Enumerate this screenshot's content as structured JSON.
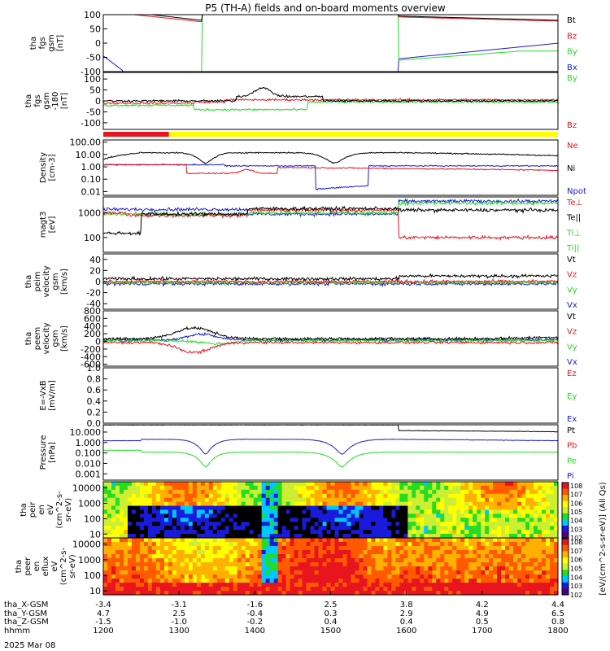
{
  "title": "P5 (TH-A) fields and on-board moments overview",
  "date_label": "2025 Mar 08",
  "colors": {
    "black": "#000000",
    "red": "#e8141e",
    "green": "#22dd22",
    "blue": "#1a1adc",
    "yellow": "#ffff00"
  },
  "chart_data": {
    "type": "line",
    "x_axis": {
      "ticks_hhmm": [
        "1200",
        "1300",
        "1400",
        "1500",
        "1600",
        "1700",
        "1800"
      ],
      "rows": [
        {
          "label": "tha_X-GSM",
          "values": [
            "-3.4",
            "-3.1",
            "-1.6",
            "2.5",
            "3.8",
            "4.2",
            "4.4"
          ]
        },
        {
          "label": "tha_Y-GSM",
          "values": [
            "4.7",
            "2.5",
            "-0.4",
            "0.3",
            "2.9",
            "4.9",
            "6.5"
          ]
        },
        {
          "label": "tha_Z-GSM",
          "values": [
            "-1.5",
            "-1.0",
            "-0.2",
            "0.4",
            "0.4",
            "0.5",
            "0.8"
          ]
        },
        {
          "label": "hhmm",
          "values": []
        }
      ]
    },
    "panels": [
      {
        "id": "fgs",
        "ylabel": [
          "tha",
          "fgs",
          "gsm",
          "[nT]"
        ],
        "scale": "linear",
        "ylim": [
          -100,
          100
        ],
        "ticks": [
          "100",
          "50",
          "0",
          "-50",
          "-100"
        ],
        "series": [
          {
            "name": "Bt",
            "color": "black"
          },
          {
            "name": "Bz",
            "color": "red"
          },
          {
            "name": "By",
            "color": "green"
          },
          {
            "name": "Bx",
            "color": "blue"
          }
        ]
      },
      {
        "id": "fgs_dsl",
        "ylabel": [
          "tha",
          "fgs",
          "gsm",
          "-180",
          "[nT]"
        ],
        "scale": "linear",
        "ylim": [
          -130,
          130
        ],
        "ticks": [
          "100",
          "50",
          "0",
          "-50",
          "-100"
        ],
        "series": [
          {
            "name": "By",
            "color": "green"
          },
          {
            "name": "Bz",
            "color": "red"
          }
        ]
      },
      {
        "id": "density",
        "ylabel": [
          "Density",
          "[cm-3]"
        ],
        "scale": "log",
        "ylim": [
          0.005,
          150
        ],
        "ticks": [
          "100.00",
          "10.00",
          "1.00",
          "0.10",
          "0.01"
        ],
        "series": [
          {
            "name": "Ne",
            "color": "red"
          },
          {
            "name": "Ni",
            "color": "black"
          },
          {
            "name": "Npot",
            "color": "blue"
          }
        ]
      },
      {
        "id": "temp",
        "ylabel": [
          "magt3",
          "[eV]"
        ],
        "scale": "log",
        "ylim": [
          25,
          4500
        ],
        "ticks": [
          "1000",
          "100"
        ],
        "series": [
          {
            "name": "Te⊥",
            "color": "red"
          },
          {
            "name": "Te||",
            "color": "black"
          },
          {
            "name": "Ti⊥",
            "color": "green"
          },
          {
            "name": "Ti||",
            "color": "green"
          }
        ]
      },
      {
        "id": "peim_v",
        "ylabel": [
          "tha",
          "peim",
          "velocity",
          "gsm",
          "[km/s]"
        ],
        "scale": "linear",
        "ylim": [
          -50,
          50
        ],
        "ticks": [
          "40",
          "20",
          "0",
          "-20",
          "-40"
        ],
        "series": [
          {
            "name": "Vt",
            "color": "black"
          },
          {
            "name": "Vz",
            "color": "red"
          },
          {
            "name": "Vy",
            "color": "green"
          },
          {
            "name": "Vx",
            "color": "blue"
          }
        ]
      },
      {
        "id": "peem_v",
        "ylabel": [
          "tha",
          "peem",
          "velocity",
          "gsm",
          "[km/s]"
        ],
        "scale": "linear",
        "ylim": [
          -650,
          800
        ],
        "ticks": [
          "800",
          "600",
          "400",
          "200",
          "0",
          "-200",
          "-400",
          "-600"
        ],
        "series": [
          {
            "name": "Vt",
            "color": "black"
          },
          {
            "name": "Vz",
            "color": "red"
          },
          {
            "name": "Vy",
            "color": "green"
          },
          {
            "name": "Vx",
            "color": "blue"
          }
        ]
      },
      {
        "id": "efield",
        "ylabel": [
          "E=-VxB",
          "[mV/m]"
        ],
        "scale": "linear",
        "ylim": [
          0,
          1
        ],
        "ticks": [
          "1.0",
          "0.8",
          "0.6",
          "0.4",
          "0.2",
          "0.0"
        ],
        "series": [
          {
            "name": "Ez",
            "color": "red"
          },
          {
            "name": "Ey",
            "color": "green"
          },
          {
            "name": "Ex",
            "color": "blue"
          }
        ]
      },
      {
        "id": "pressure",
        "ylabel": [
          "Pressure",
          "[nPa]"
        ],
        "scale": "log",
        "ylim": [
          0.00025,
          50
        ],
        "ticks": [
          "10.000",
          "1.000",
          "0.100",
          "0.010",
          "0.001"
        ],
        "series": [
          {
            "name": "Pt",
            "color": "black"
          },
          {
            "name": "Pb",
            "color": "red"
          },
          {
            "name": "Pe",
            "color": "green"
          },
          {
            "name": "Pi",
            "color": "blue"
          }
        ]
      },
      {
        "id": "peir",
        "ylabel": [
          "tha",
          "peir",
          "en",
          "eV",
          "(cm^2-s-",
          "sr-eV)"
        ],
        "scale": "log",
        "type": "heatmap",
        "ticks": [
          "10000",
          "1000",
          "100",
          "10"
        ]
      },
      {
        "id": "peer",
        "ylabel": [
          "tha",
          "peer",
          "en",
          "eflux",
          "eV",
          "(cm^2-s-",
          "sr-eV)"
        ],
        "scale": "log",
        "type": "heatmap",
        "ticks": [
          "10000",
          "1000",
          "100",
          "10"
        ]
      }
    ],
    "colorbar": {
      "label": "[eV/(cm^2-s-sr-eV)] (All Qs)",
      "ticks_upper": [
        "10^8",
        "10^7",
        "10^6",
        "10^5",
        "10^4",
        "10^3",
        "10^2"
      ],
      "ticks_lower": [
        "10^8",
        "10^7",
        "10^6",
        "10^5",
        "10^4",
        "10^3",
        "10^2"
      ]
    },
    "xlim": [
      1200,
      1800
    ],
    "mode_bar": {
      "segments": [
        {
          "from": 1200,
          "to": 1252,
          "color": "red"
        },
        {
          "from": 1252,
          "to": 1800,
          "color": "yellow"
        }
      ]
    }
  }
}
